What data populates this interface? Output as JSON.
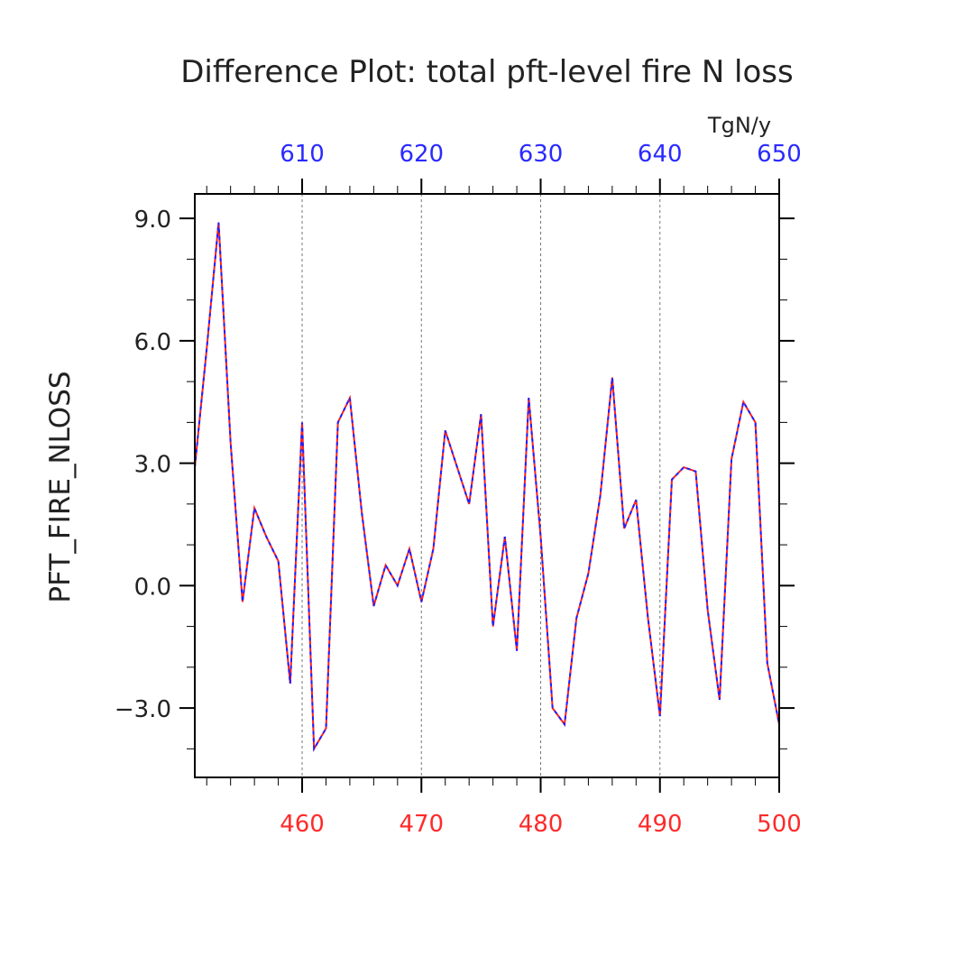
{
  "chart_data": {
    "type": "line",
    "title": "Difference Plot: total pft-level fire N loss",
    "units": "TgN/y",
    "ylabel": "PFT_FIRE_NLOSS",
    "xlabel": "",
    "xlim": [
      451,
      500
    ],
    "ylim": [
      -4.7,
      9.6
    ],
    "y_ticks": [
      -3.0,
      0.0,
      3.0,
      6.0,
      9.0
    ],
    "y_tick_labels": [
      "−3.0",
      "0.0",
      "3.0",
      "6.0",
      "9.0"
    ],
    "x_ticks_bottom": [
      460,
      470,
      480,
      490,
      500
    ],
    "x_ticks_bottom_labels": [
      "460",
      "470",
      "480",
      "490",
      "500"
    ],
    "x_ticks_top": [
      610,
      620,
      630,
      640,
      650
    ],
    "x_ticks_top_labels": [
      "610",
      "620",
      "630",
      "640",
      "650"
    ],
    "top_axis_offset": 150,
    "grid": "vertical dashed at major x ticks",
    "colors": {
      "bottom_axis": "#ff2a2a",
      "top_axis": "#2a2aff",
      "series_1": "#ff2020",
      "series_2": "#2020ff"
    },
    "x": [
      451,
      452,
      453,
      454,
      455,
      456,
      457,
      458,
      459,
      460,
      461,
      462,
      463,
      464,
      465,
      466,
      467,
      468,
      469,
      470,
      471,
      472,
      473,
      474,
      475,
      476,
      477,
      478,
      479,
      480,
      481,
      482,
      483,
      484,
      485,
      486,
      487,
      488,
      489,
      490,
      491,
      492,
      493,
      494,
      495,
      496,
      497,
      498,
      499,
      500
    ],
    "series": [
      {
        "values": [
          2.9,
          5.8,
          8.9,
          3.5,
          -0.4,
          1.9,
          1.2,
          0.6,
          -2.4,
          4.0,
          -4.0,
          -3.5,
          4.0,
          4.6,
          1.8,
          -0.5,
          0.5,
          0.0,
          0.9,
          -0.4,
          0.9,
          3.8,
          2.9,
          2.0,
          4.2,
          -1.0,
          1.2,
          -1.6,
          4.6,
          1.2,
          -3.0,
          -3.4,
          -0.8,
          0.3,
          2.2,
          5.1,
          1.4,
          2.1,
          -0.8,
          -3.2,
          2.6,
          2.9,
          2.8,
          -0.6,
          -2.8,
          3.1,
          4.5,
          4.0,
          -1.9,
          -3.4
        ]
      },
      {
        "values": [
          2.9,
          5.8,
          8.9,
          3.5,
          -0.4,
          1.9,
          1.2,
          0.6,
          -2.4,
          4.0,
          -4.0,
          -3.5,
          4.0,
          4.6,
          1.8,
          -0.5,
          0.5,
          0.0,
          0.9,
          -0.4,
          0.9,
          3.8,
          2.9,
          2.0,
          4.2,
          -1.0,
          1.2,
          -1.6,
          4.6,
          1.2,
          -3.0,
          -3.4,
          -0.8,
          0.3,
          2.2,
          5.1,
          1.4,
          2.1,
          -0.8,
          -3.2,
          2.6,
          2.9,
          2.8,
          -0.6,
          -2.8,
          3.1,
          4.5,
          4.0,
          -1.9,
          -3.4
        ]
      }
    ]
  }
}
